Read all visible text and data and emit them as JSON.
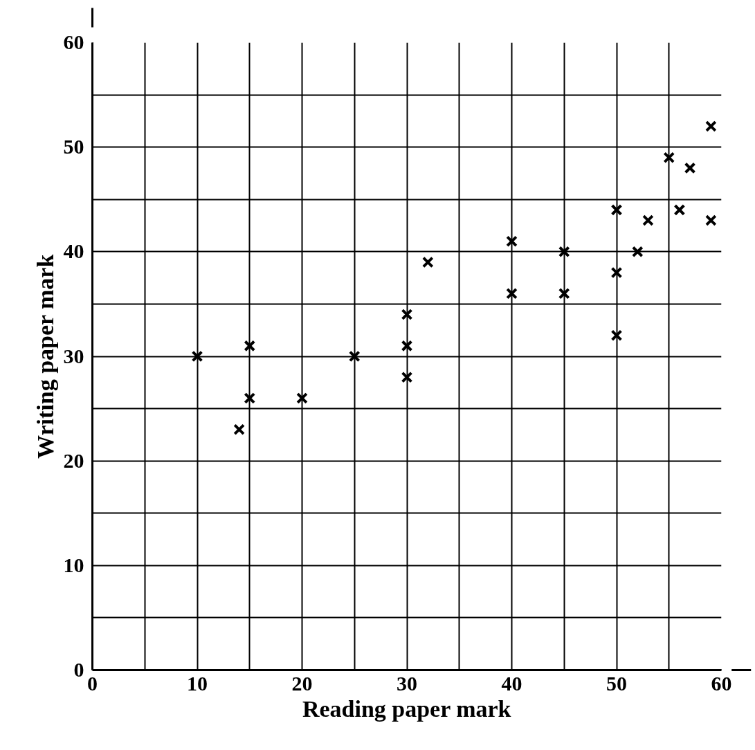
{
  "chart_data": {
    "type": "scatter",
    "xlabel": "Reading paper mark",
    "ylabel": "Writing paper mark",
    "x": [
      10,
      14,
      15,
      15,
      20,
      25,
      30,
      30,
      30,
      32,
      40,
      40,
      45,
      45,
      50,
      50,
      50,
      52,
      53,
      55,
      56,
      57,
      59,
      59
    ],
    "series": [
      {
        "color": "#000000",
        "values": [
          30,
          23,
          31,
          26,
          26,
          30,
          34,
          31,
          28,
          39,
          41,
          36,
          40,
          36,
          44,
          38,
          32,
          40,
          43,
          49,
          44,
          48,
          52,
          43
        ]
      }
    ],
    "xlim": [
      0,
      60
    ],
    "ylim": [
      0,
      60
    ],
    "xticks": [
      0,
      {
        "value": 5,
        "label": null
      },
      10,
      {
        "value": 15,
        "label": null
      },
      20,
      {
        "value": 25,
        "label": null
      },
      30,
      {
        "value": 35,
        "label": null
      },
      40,
      {
        "value": 45,
        "label": null
      },
      50,
      {
        "value": 55,
        "label": null
      },
      60
    ],
    "yticks": [
      0,
      {
        "value": 5,
        "label": null
      },
      10,
      {
        "value": 15,
        "label": null
      },
      20,
      {
        "value": 25,
        "label": null
      },
      30,
      {
        "value": 35,
        "label": null
      },
      40,
      {
        "value": 45,
        "label": null
      },
      50,
      {
        "value": 55,
        "label": null
      },
      60
    ],
    "grid": true,
    "marker": "cross"
  }
}
